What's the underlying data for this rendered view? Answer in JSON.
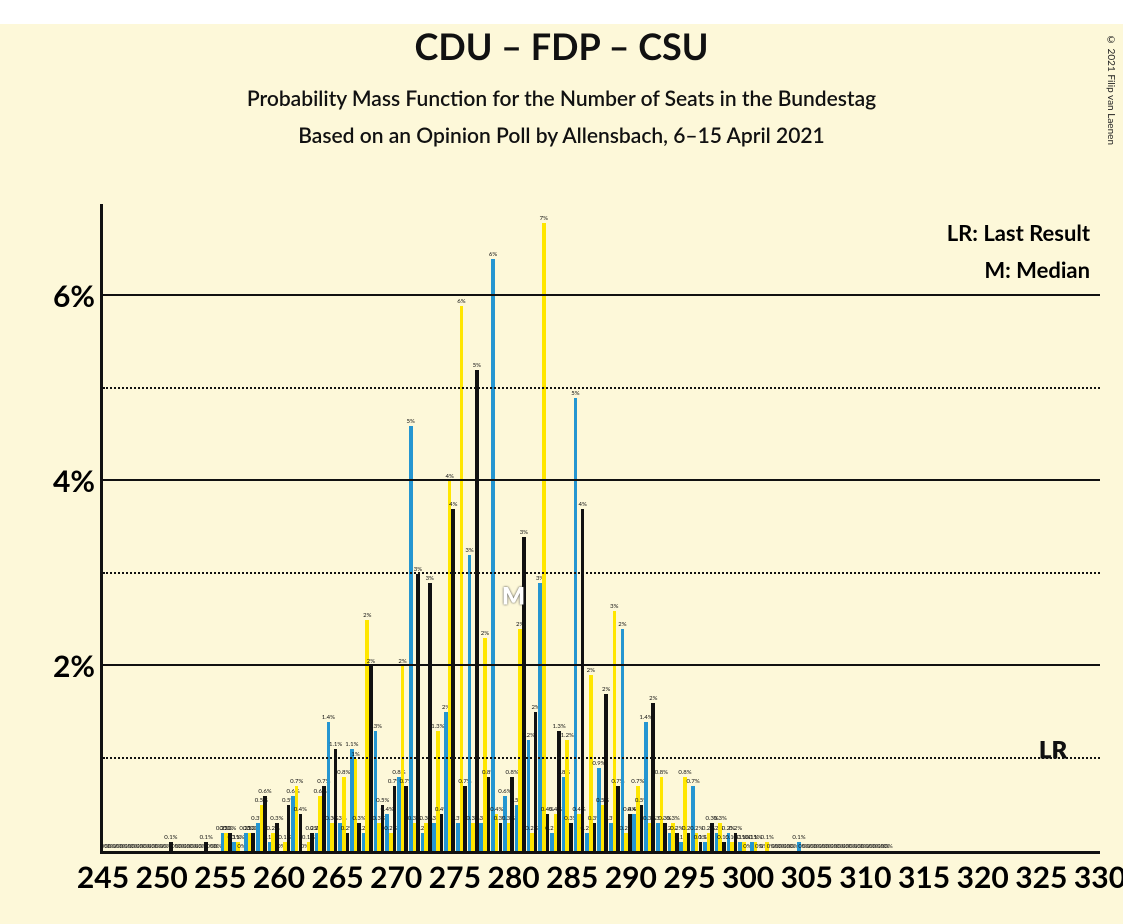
{
  "background_color": "#fdf8d9",
  "title": "CDU – FDP – CSU",
  "subtitle": "Probability Mass Function for the Number of Seats in the Bundestag",
  "subtitle2": "Based on an Opinion Poll by Allensbach, 6–15 April 2021",
  "copyright": "© 2021 Filip van Laenen",
  "legend_lr": "LR: Last Result",
  "legend_m": "M: Median",
  "chart": {
    "ymax": 7.0,
    "ylim": [
      0,
      7.0
    ],
    "y_major_ticks": [
      2,
      4,
      6
    ],
    "y_minor_ticks": [
      1,
      3,
      5
    ],
    "x_tick_labels": [
      245,
      250,
      255,
      260,
      265,
      270,
      275,
      280,
      285,
      290,
      295,
      300,
      305,
      310,
      315,
      320,
      325,
      330
    ],
    "x_range": [
      245,
      330
    ],
    "series": [
      {
        "name": "blue",
        "color": "#2596d1"
      },
      {
        "name": "yellow",
        "color": "#ffe600"
      },
      {
        "name": "black",
        "color": "#111111"
      }
    ],
    "median_x": 284,
    "median_key": "M",
    "lr_x": 326,
    "lr_y": 0.78,
    "lr_key": "LR",
    "data": {
      "245": {
        "blue_v": 0,
        "blue_l": "0%",
        "yellow_v": 0,
        "yellow_l": "0%",
        "black_v": 0,
        "black_l": "0%"
      },
      "246": {
        "blue_v": 0,
        "blue_l": "0%",
        "yellow_v": 0,
        "yellow_l": "0%",
        "black_v": 0,
        "black_l": "0%"
      },
      "247": {
        "blue_v": 0,
        "blue_l": "0%",
        "yellow_v": 0,
        "yellow_l": "0%",
        "black_v": 0,
        "black_l": "0%"
      },
      "248": {
        "blue_v": 0,
        "blue_l": "0%",
        "yellow_v": 0,
        "yellow_l": "0%",
        "black_v": 0,
        "black_l": "0%"
      },
      "249": {
        "blue_v": 0,
        "blue_l": "0%",
        "yellow_v": 0,
        "yellow_l": "0%",
        "black_v": 0,
        "black_l": "0%"
      },
      "250": {
        "blue_v": 0,
        "blue_l": "0%",
        "yellow_v": 0,
        "yellow_l": "0%",
        "black_v": 0.1,
        "black_l": "0.1%"
      },
      "251": {
        "blue_v": 0,
        "blue_l": "0%",
        "yellow_v": 0,
        "yellow_l": "0%",
        "black_v": 0,
        "black_l": "0%"
      },
      "252": {
        "blue_v": 0,
        "blue_l": "0%",
        "yellow_v": 0,
        "yellow_l": "0%",
        "black_v": 0,
        "black_l": "0%"
      },
      "253": {
        "blue_v": 0,
        "blue_l": "0%",
        "yellow_v": 0,
        "yellow_l": "0%",
        "black_v": 0.1,
        "black_l": "0.1%"
      },
      "254": {
        "blue_v": 0,
        "blue_l": "0%",
        "yellow_v": 0,
        "yellow_l": "0%",
        "black_v": 0,
        "black_l": "0%"
      },
      "255": {
        "blue_v": 0.2,
        "blue_l": "0.2%",
        "yellow_v": 0.2,
        "yellow_l": "0.2%",
        "black_v": 0.2,
        "black_l": "0.2%"
      },
      "256": {
        "blue_v": 0.1,
        "blue_l": "0.1%",
        "yellow_v": 0.1,
        "yellow_l": "0.1%",
        "black_v": 0,
        "black_l": "0%"
      },
      "257": {
        "blue_v": 0.2,
        "blue_l": "0.2%",
        "yellow_v": 0.2,
        "yellow_l": "0.2%",
        "black_v": 0.2,
        "black_l": "0.2%"
      },
      "258": {
        "blue_v": 0.3,
        "blue_l": "0.3%",
        "yellow_v": 0.5,
        "yellow_l": "0.5%",
        "black_v": 0.6,
        "black_l": "0.6%"
      },
      "259": {
        "blue_v": 0.1,
        "blue_l": "0.1%",
        "yellow_v": 0.2,
        "yellow_l": "0.2%",
        "black_v": 0.3,
        "black_l": "0.3%"
      },
      "260": {
        "blue_v": 0,
        "blue_l": "0%",
        "yellow_v": 0.1,
        "yellow_l": "0.1%",
        "black_v": 0.5,
        "black_l": "0.5%"
      },
      "261": {
        "blue_v": 0.6,
        "blue_l": "0.6%",
        "yellow_v": 0.7,
        "yellow_l": "0.7%",
        "black_v": 0.4,
        "black_l": "0.4%"
      },
      "262": {
        "blue_v": 0,
        "blue_l": "0%",
        "yellow_v": 0.1,
        "yellow_l": "0.1%",
        "black_v": 0.2,
        "black_l": "0.2%"
      },
      "263": {
        "blue_v": 0.2,
        "blue_l": "0.2%",
        "yellow_v": 0.6,
        "yellow_l": "0.6%",
        "black_v": 0.7,
        "black_l": "0.7%"
      },
      "264": {
        "blue_v": 1.4,
        "blue_l": "1.4%",
        "yellow_v": 0.3,
        "yellow_l": "0.3%",
        "black_v": 1.1,
        "black_l": "1.1%"
      },
      "265": {
        "blue_v": 0.3,
        "blue_l": "0.3%",
        "yellow_v": 0.8,
        "yellow_l": "0.8%",
        "black_v": 0.2,
        "black_l": "0.2%"
      },
      "266": {
        "blue_v": 1.1,
        "blue_l": "1.1%",
        "yellow_v": 1.0,
        "yellow_l": "1%",
        "black_v": 0.3,
        "black_l": "0.3%"
      },
      "267": {
        "blue_v": 0.2,
        "blue_l": "0.2%",
        "yellow_v": 2.5,
        "yellow_l": "2%",
        "black_v": 2.0,
        "black_l": "2%"
      },
      "268": {
        "blue_v": 1.3,
        "blue_l": "1.3%",
        "yellow_v": 0.3,
        "yellow_l": "0.3%",
        "black_v": 0.5,
        "black_l": "0.5%"
      },
      "269": {
        "blue_v": 0.4,
        "blue_l": "0.4%",
        "yellow_v": 0.2,
        "yellow_l": "0.2%",
        "black_v": 0.7,
        "black_l": "0.7%"
      },
      "270": {
        "blue_v": 0.8,
        "blue_l": "0.8%",
        "yellow_v": 2.0,
        "yellow_l": "2%",
        "black_v": 0.7,
        "black_l": "0.7%"
      },
      "271": {
        "blue_v": 4.6,
        "blue_l": "5%",
        "yellow_v": 0.3,
        "yellow_l": "0.3%",
        "black_v": 3.0,
        "black_l": "3%"
      },
      "272": {
        "blue_v": 0.2,
        "blue_l": "0.2%",
        "yellow_v": 0.3,
        "yellow_l": "0.3%",
        "black_v": 2.9,
        "black_l": "3%"
      },
      "273": {
        "blue_v": 0.3,
        "blue_l": "0.3%",
        "yellow_v": 1.3,
        "yellow_l": "1.3%",
        "black_v": 0.4,
        "black_l": "0.4%"
      },
      "274": {
        "blue_v": 1.5,
        "blue_l": "2%",
        "yellow_v": 4.0,
        "yellow_l": "4%",
        "black_v": 3.7,
        "black_l": "4%"
      },
      "275": {
        "blue_v": 0.3,
        "blue_l": "0.3%",
        "yellow_v": 5.9,
        "yellow_l": "6%",
        "black_v": 0.7,
        "black_l": "0.7%"
      },
      "276": {
        "blue_v": 3.2,
        "blue_l": "3%",
        "yellow_v": 0.3,
        "yellow_l": "0.3%",
        "black_v": 5.2,
        "black_l": "5%"
      },
      "277": {
        "blue_v": 0.3,
        "blue_l": "0.3%",
        "yellow_v": 2.3,
        "yellow_l": "2%",
        "black_v": 0.8,
        "black_l": "0.8%"
      },
      "278": {
        "blue_v": 6.4,
        "blue_l": "6%",
        "yellow_v": 0.4,
        "yellow_l": "0.4%",
        "black_v": 0.3,
        "black_l": "0.3%"
      },
      "279": {
        "blue_v": 0.6,
        "blue_l": "0.6%",
        "yellow_v": 0.3,
        "yellow_l": "0.3%",
        "black_v": 0.8,
        "black_l": "0.8%"
      },
      "280": {
        "blue_v": 0.5,
        "blue_l": "0.5%",
        "yellow_v": 2.4,
        "yellow_l": "2%",
        "black_v": 3.4,
        "black_l": "3%"
      },
      "281": {
        "blue_v": 1.2,
        "blue_l": "1.2%",
        "yellow_v": 0.2,
        "yellow_l": "0.2%",
        "black_v": 1.5,
        "black_l": "2%"
      },
      "282": {
        "blue_v": 2.9,
        "blue_l": "3%",
        "yellow_v": 6.8,
        "yellow_l": "7%",
        "black_v": 0.4,
        "black_l": "0.4%"
      },
      "283": {
        "blue_v": 0.2,
        "blue_l": "0.2%",
        "yellow_v": 0.4,
        "yellow_l": "0.4%",
        "black_v": 1.3,
        "black_l": "1.3%"
      },
      "284": {
        "blue_v": 0.8,
        "blue_l": "0.8%",
        "yellow_v": 1.2,
        "yellow_l": "1.2%",
        "black_v": 0.3,
        "black_l": "0.3%"
      },
      "285": {
        "blue_v": 4.9,
        "blue_l": "5%",
        "yellow_v": 0.4,
        "yellow_l": "0.4%",
        "black_v": 3.7,
        "black_l": "4%"
      },
      "286": {
        "blue_v": 0.2,
        "blue_l": "0.2%",
        "yellow_v": 1.9,
        "yellow_l": "2%",
        "black_v": 0.3,
        "black_l": "0.3%"
      },
      "287": {
        "blue_v": 0.9,
        "blue_l": "0.9%",
        "yellow_v": 0.5,
        "yellow_l": "0.5%",
        "black_v": 1.7,
        "black_l": "2%"
      },
      "288": {
        "blue_v": 0.3,
        "blue_l": "0.3%",
        "yellow_v": 2.6,
        "yellow_l": "3%",
        "black_v": 0.7,
        "black_l": "0.7%"
      },
      "289": {
        "blue_v": 2.4,
        "blue_l": "2%",
        "yellow_v": 0.2,
        "yellow_l": "0.2%",
        "black_v": 0.4,
        "black_l": "0.4%"
      },
      "290": {
        "blue_v": 0.4,
        "blue_l": "0.4%",
        "yellow_v": 0.7,
        "yellow_l": "0.7%",
        "black_v": 0.5,
        "black_l": "0.5%"
      },
      "291": {
        "blue_v": 1.4,
        "blue_l": "1.4%",
        "yellow_v": 0.3,
        "yellow_l": "0.3%",
        "black_v": 1.6,
        "black_l": "2%"
      },
      "292": {
        "blue_v": 0.3,
        "blue_l": "0.3%",
        "yellow_v": 0.8,
        "yellow_l": "0.8%",
        "black_v": 0.3,
        "black_l": "0.3%"
      },
      "293": {
        "blue_v": 0.2,
        "blue_l": "0.2%",
        "yellow_v": 0.3,
        "yellow_l": "0.3%",
        "black_v": 0.2,
        "black_l": "0.2%"
      },
      "294": {
        "blue_v": 0.1,
        "blue_l": "0.1%",
        "yellow_v": 0.8,
        "yellow_l": "0.8%",
        "black_v": 0.2,
        "black_l": "0.2%"
      },
      "295": {
        "blue_v": 0.7,
        "blue_l": "0.7%",
        "yellow_v": 0.2,
        "yellow_l": "0.2%",
        "black_v": 0.1,
        "black_l": "0.1%"
      },
      "296": {
        "blue_v": 0.1,
        "blue_l": "0.1%",
        "yellow_v": 0.2,
        "yellow_l": "0.2%",
        "black_v": 0.3,
        "black_l": "0.3%"
      },
      "297": {
        "blue_v": 0.2,
        "blue_l": "0.2%",
        "yellow_v": 0.3,
        "yellow_l": "0.3%",
        "black_v": 0.1,
        "black_l": "0.1%"
      },
      "298": {
        "blue_v": 0.2,
        "blue_l": "0.2%",
        "yellow_v": 0.1,
        "yellow_l": "0.1%",
        "black_v": 0.2,
        "black_l": "0.2%"
      },
      "299": {
        "blue_v": 0.1,
        "blue_l": "0.1%",
        "yellow_v": 0.1,
        "yellow_l": "0.1%",
        "black_v": 0,
        "black_l": "0%"
      },
      "300": {
        "blue_v": 0.1,
        "blue_l": "0.1%",
        "yellow_v": 0.1,
        "yellow_l": "0.1%",
        "black_v": 0,
        "black_l": "0%"
      },
      "301": {
        "blue_v": 0,
        "blue_l": "0%",
        "yellow_v": 0.1,
        "yellow_l": "0.1%",
        "black_v": 0,
        "black_l": "0%"
      },
      "302": {
        "blue_v": 0,
        "blue_l": "0%",
        "yellow_v": 0,
        "yellow_l": "0%",
        "black_v": 0,
        "black_l": "0%"
      },
      "303": {
        "blue_v": 0,
        "blue_l": "0%",
        "yellow_v": 0,
        "yellow_l": "0%",
        "black_v": 0,
        "black_l": "0%"
      },
      "304": {
        "blue_v": 0.1,
        "blue_l": "0.1%",
        "yellow_v": 0,
        "yellow_l": "0%",
        "black_v": 0,
        "black_l": "0%"
      },
      "305": {
        "blue_v": 0,
        "blue_l": "0%",
        "yellow_v": 0,
        "yellow_l": "0%",
        "black_v": 0,
        "black_l": "0%"
      },
      "306": {
        "blue_v": 0,
        "blue_l": "0%",
        "yellow_v": 0,
        "yellow_l": "0%",
        "black_v": 0,
        "black_l": "0%"
      },
      "307": {
        "blue_v": 0,
        "blue_l": "0%",
        "yellow_v": 0,
        "yellow_l": "0%",
        "black_v": 0,
        "black_l": "0%"
      },
      "308": {
        "blue_v": 0,
        "blue_l": "0%",
        "yellow_v": 0,
        "yellow_l": "0%",
        "black_v": 0,
        "black_l": "0%"
      },
      "309": {
        "blue_v": 0,
        "blue_l": "0%",
        "yellow_v": 0,
        "yellow_l": "0%",
        "black_v": 0,
        "black_l": "0%"
      },
      "310": {
        "blue_v": 0,
        "blue_l": "0%",
        "yellow_v": 0,
        "yellow_l": "0%",
        "black_v": 0,
        "black_l": "0%"
      },
      "311": {
        "blue_v": 0,
        "blue_l": "0%",
        "yellow_v": 0,
        "yellow_l": "0%",
        "black_v": 0,
        "black_l": "0%"
      }
    }
  }
}
